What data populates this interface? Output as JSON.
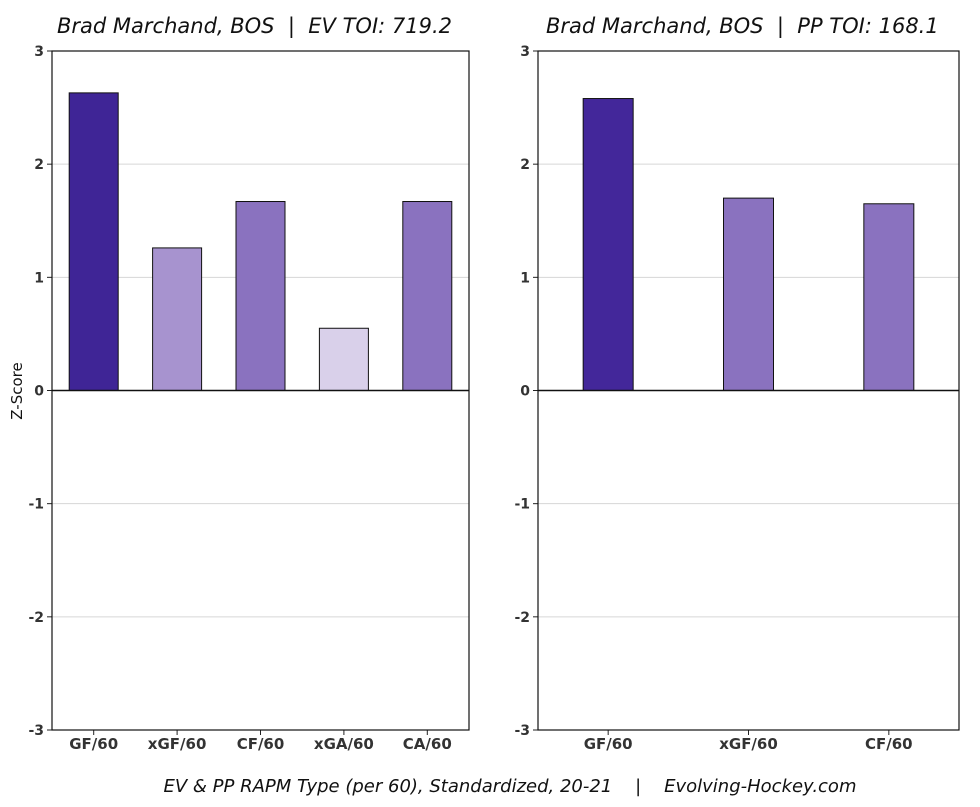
{
  "caption": "EV & PP RAPM Type (per 60), Standardized, 20-21    |    Evolving-Hockey.com",
  "chart_data": [
    {
      "type": "bar",
      "title": "Brad Marchand, BOS  |  EV TOI: 719.2",
      "xlabel": "",
      "ylabel": "Z-Score",
      "ylim": [
        -3,
        3
      ],
      "yticks": [
        -3,
        -2,
        -1,
        0,
        1,
        2,
        3
      ],
      "grid": true,
      "categories": [
        "GF/60",
        "xGF/60",
        "CF/60",
        "xGA/60",
        "CA/60"
      ],
      "values": [
        2.63,
        1.26,
        1.67,
        0.55,
        1.67
      ],
      "colors": [
        "#3f2596",
        "#a793cf",
        "#8a72bf",
        "#d9d0ea",
        "#8a72bf"
      ]
    },
    {
      "type": "bar",
      "title": "Brad Marchand, BOS  |  PP TOI: 168.1",
      "xlabel": "",
      "ylabel": "",
      "ylim": [
        -3,
        3
      ],
      "yticks": [
        -3,
        -2,
        -1,
        0,
        1,
        2,
        3
      ],
      "grid": true,
      "categories": [
        "GF/60",
        "xGF/60",
        "CF/60"
      ],
      "values": [
        2.58,
        1.7,
        1.65
      ],
      "colors": [
        "#43279a",
        "#8a72bf",
        "#8a72bf"
      ]
    }
  ]
}
